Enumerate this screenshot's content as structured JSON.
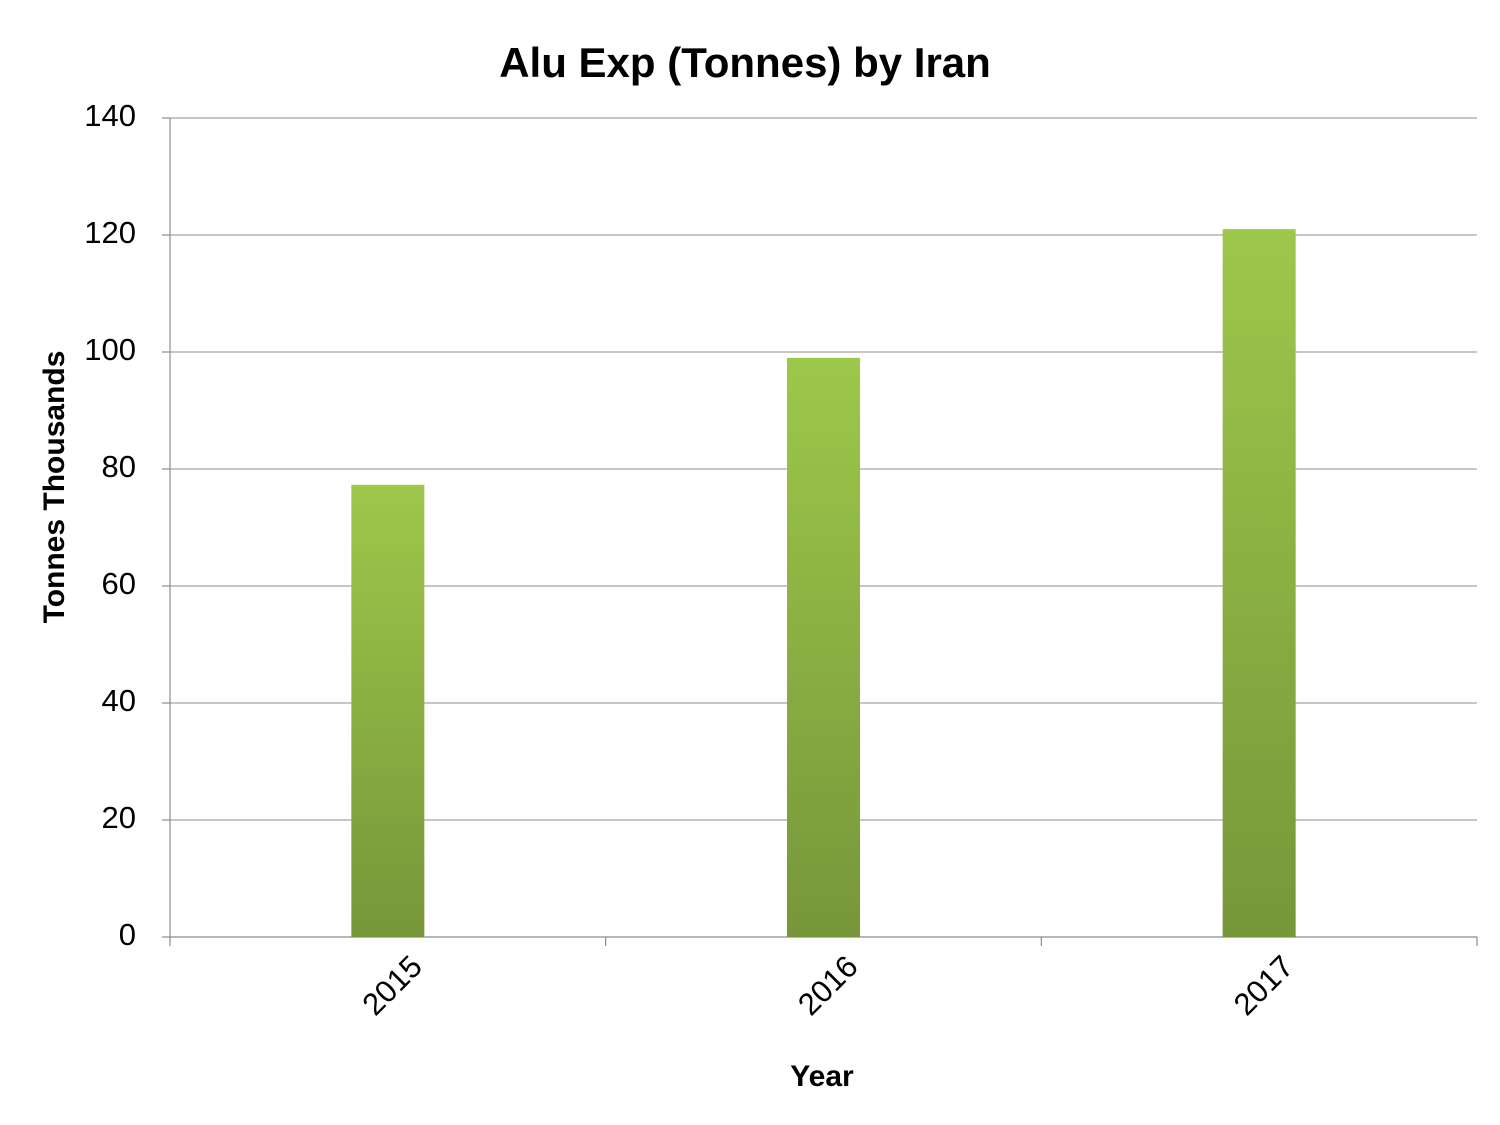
{
  "chart_data": {
    "type": "bar",
    "title": "Alu Exp (Tonnes) by Iran",
    "x_label": "Year",
    "y_label": "Tonnes Thousands",
    "categories": [
      "2015",
      "2016",
      "2017"
    ],
    "values": [
      77.3,
      99,
      121
    ],
    "color": "#9dc84a",
    "ylim": [
      0,
      140
    ],
    "yticks": [
      0,
      20,
      40,
      60,
      80,
      100,
      120,
      140
    ],
    "grid": true
  }
}
